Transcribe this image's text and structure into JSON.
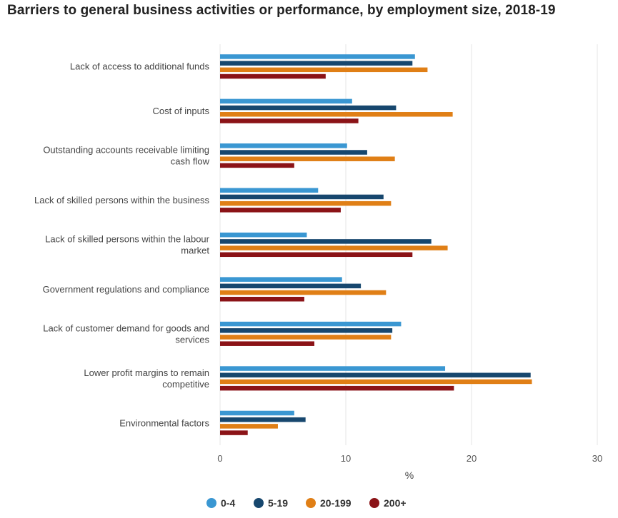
{
  "title": "Barriers to general business activities or performance, by employment size, 2018-19",
  "colors": {
    "s1": "#3a97d2",
    "s2": "#17476e",
    "s3": "#e07f16",
    "s4": "#8b1317",
    "grid": "#e4e4e4"
  },
  "chart_data": {
    "type": "bar",
    "orientation": "horizontal",
    "categories": [
      [
        "Lack of access to additional funds"
      ],
      [
        "Cost of inputs"
      ],
      [
        "Outstanding accounts receivable limiting",
        "cash flow"
      ],
      [
        "Lack of skilled persons within the business"
      ],
      [
        "Lack of skilled persons within the labour",
        "market"
      ],
      [
        "Government regulations and compliance"
      ],
      [
        "Lack of customer demand for goods and",
        "services"
      ],
      [
        "Lower profit margins to remain",
        "competitive"
      ],
      [
        "Environmental factors"
      ]
    ],
    "series": [
      {
        "name": "0-4",
        "color": "#3a97d2",
        "values": [
          15.5,
          10.5,
          10.1,
          7.8,
          6.9,
          9.7,
          14.4,
          17.9,
          5.9
        ]
      },
      {
        "name": "5-19",
        "color": "#17476e",
        "values": [
          15.3,
          14.0,
          11.7,
          13.0,
          16.8,
          11.2,
          13.7,
          24.7,
          6.8
        ]
      },
      {
        "name": "20-199",
        "color": "#e07f16",
        "values": [
          16.5,
          18.5,
          13.9,
          13.6,
          18.1,
          13.2,
          13.6,
          24.8,
          4.6
        ]
      },
      {
        "name": "200+",
        "color": "#8b1317",
        "values": [
          8.4,
          11.0,
          5.9,
          9.6,
          15.3,
          6.7,
          7.5,
          18.6,
          2.2
        ]
      }
    ],
    "xlabel": "%",
    "ylabel": "",
    "xlim": [
      0,
      30
    ],
    "xticks": [
      0,
      10,
      20,
      30
    ],
    "grid": "vertical",
    "legend": "bottom-center"
  }
}
